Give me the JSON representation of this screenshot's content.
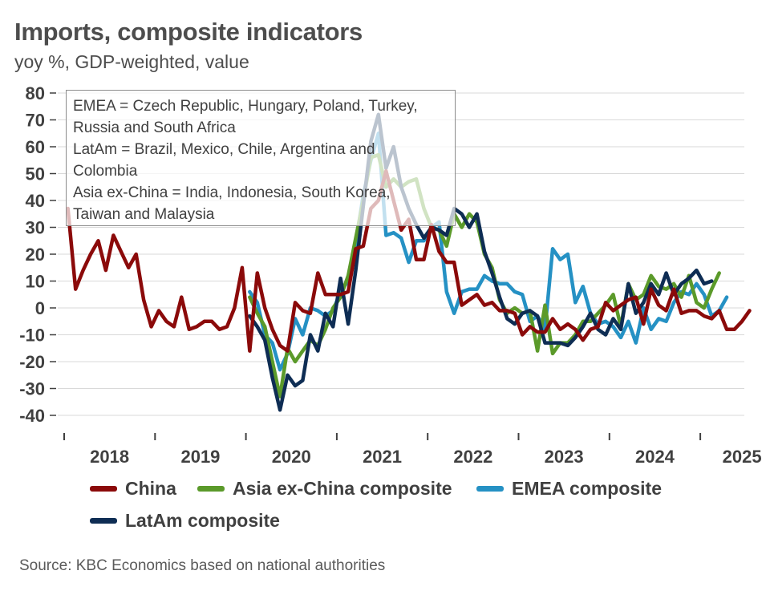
{
  "title": "Imports, composite indicators",
  "subtitle": "yoy %, GDP-weighted, value",
  "source": "Source: KBC Economics based on national authorities",
  "note_lines": [
    "EMEA = Czech Republic, Hungary, Poland, Turkey,",
    "Russia and South Africa",
    "LatAm = Brazil, Mexico, Chile, Argentina and",
    "Colombia",
    "Asia ex-China = India, Indonesia, South Korea,",
    "Taiwan and Malaysia"
  ],
  "chart_data": {
    "type": "line",
    "title": "Imports, composite indicators",
    "subtitle": "yoy %, GDP-weighted, value",
    "ylim": [
      -40,
      80
    ],
    "yticks": [
      80,
      70,
      60,
      50,
      40,
      30,
      20,
      10,
      0,
      -10,
      -20,
      -30,
      -40
    ],
    "xlim": [
      "2018-01",
      "2025-05"
    ],
    "xticks": [
      "2018",
      "2019",
      "2020",
      "2021",
      "2022",
      "2023",
      "2024",
      "2025"
    ],
    "grid": "horizontal",
    "legend_position": "bottom",
    "series": [
      {
        "name": "China",
        "color": "#8b0a0a",
        "start": "2018-01",
        "values": [
          37,
          7,
          14,
          20,
          25,
          14,
          27,
          21,
          15,
          20,
          3,
          -7,
          -1,
          -5,
          -7,
          4,
          -8,
          -7,
          -5,
          -5,
          -8,
          -7,
          0,
          15,
          -16,
          13,
          0,
          -8,
          -14,
          -16,
          2,
          -1,
          -2,
          13,
          5,
          5,
          5,
          6,
          22,
          23,
          37,
          40,
          51,
          40,
          29,
          33,
          18,
          18,
          31,
          21,
          17,
          17,
          1,
          3,
          5,
          1,
          2,
          -1,
          -1,
          -2,
          -10,
          -7,
          -9,
          -9,
          -4,
          -8,
          -6,
          -8,
          -12,
          -8,
          -7,
          2,
          -1,
          1,
          3,
          4,
          -6,
          7,
          1,
          -1,
          7,
          -2,
          -1,
          -1,
          -3,
          -4,
          -1,
          -8,
          -8,
          -5,
          -1
        ]
      },
      {
        "name": "Asia ex-China composite",
        "color": "#5b9a2a",
        "start": "2020-01",
        "values": [
          4,
          -2,
          -7,
          -20,
          -33,
          -15,
          -20,
          -16,
          -12,
          -14,
          -8,
          0,
          4,
          12,
          26,
          40,
          56,
          57,
          45,
          48,
          45,
          47,
          48,
          37,
          30,
          29,
          23,
          35,
          30,
          35,
          32,
          20,
          15,
          3,
          -2,
          0,
          -2,
          -1,
          -16,
          1,
          -17,
          -13,
          -13,
          -10,
          -5,
          -5,
          -2,
          1,
          5,
          -7,
          9,
          3,
          5,
          12,
          8,
          7,
          9,
          4,
          12,
          2,
          0,
          7,
          13
        ]
      },
      {
        "name": "EMEA composite",
        "color": "#2591c4",
        "start": "2020-01",
        "values": [
          6,
          2,
          -10,
          -13,
          -23,
          -17,
          -4,
          -10,
          0,
          -1,
          -3,
          -1,
          6,
          10,
          24,
          42,
          55,
          65,
          27,
          28,
          26,
          17,
          25,
          25,
          30,
          32,
          6,
          -2,
          6,
          7,
          7,
          12,
          10,
          9,
          9,
          6,
          5,
          -5,
          -3,
          -8,
          22,
          18,
          20,
          2,
          8,
          -2,
          -6,
          -5,
          -7,
          -11,
          -5,
          -13,
          0,
          -8,
          -4,
          -5,
          2,
          6,
          5,
          9,
          5,
          -3,
          -1,
          4
        ]
      },
      {
        "name": "LatAm composite",
        "color": "#0e2d54",
        "start": "2020-01",
        "values": [
          -3,
          -7,
          -12,
          -26,
          -38,
          -25,
          -29,
          -27,
          -10,
          -16,
          -2,
          -7,
          11,
          -6,
          14,
          38,
          62,
          72,
          52,
          60,
          45,
          37,
          31,
          26,
          30,
          29,
          27,
          37,
          35,
          30,
          35,
          21,
          13,
          4,
          -4,
          -6,
          -2,
          -1,
          -3,
          -13,
          -13,
          -13,
          -14,
          -11,
          -7,
          -2,
          -8,
          -10,
          -4,
          -8,
          9,
          -2,
          2,
          9,
          5,
          13,
          5,
          9,
          11,
          14,
          9,
          10
        ]
      }
    ]
  },
  "legend": [
    {
      "label": "China",
      "color": "#8b0a0a"
    },
    {
      "label": "Asia ex-China composite",
      "color": "#5b9a2a"
    },
    {
      "label": "EMEA composite",
      "color": "#2591c4"
    },
    {
      "label": "LatAm composite",
      "color": "#0e2d54"
    }
  ]
}
